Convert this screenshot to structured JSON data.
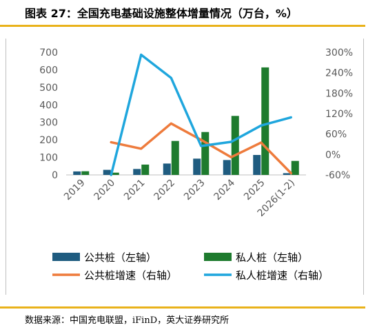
{
  "header": {
    "title": "图表 27：全国充电基础设施整体增量情况（万台，%）"
  },
  "footer": {
    "source": "数据来源：中国充电联盟，iFinD，英大证券研究所"
  },
  "colors": {
    "public_bar": "#1f5c80",
    "private_bar": "#1e7b2e",
    "public_growth": "#ee7b3c",
    "private_growth": "#1fa6dd",
    "rule": "#e9b21a"
  },
  "chart_data": {
    "type": "bar",
    "title": "全国充电基础设施整体增量情况（万台，%）",
    "categories": [
      "2019",
      "2020",
      "2021",
      "2022",
      "2023",
      "2024",
      "2025",
      "2026(1-2)"
    ],
    "y_left": {
      "ylim": [
        0,
        700
      ],
      "ticks": [
        "0",
        "100",
        "200",
        "300",
        "400",
        "500",
        "600",
        "700"
      ]
    },
    "y_right": {
      "ylim": [
        -60,
        300
      ],
      "ticks": [
        "-60%",
        "0%",
        "60%",
        "120%",
        "180%",
        "240%",
        "300%"
      ]
    },
    "series": [
      {
        "name": "公共桩（左轴）",
        "type": "bar",
        "axis": "left",
        "color": "#1f5c80",
        "values": [
          20,
          29,
          34,
          65,
          93,
          85,
          114,
          10
        ]
      },
      {
        "name": "私人桩（左轴）",
        "type": "bar",
        "axis": "left",
        "color": "#1e7b2e",
        "values": [
          21,
          13,
          59,
          194,
          245,
          337,
          614,
          80
        ]
      },
      {
        "name": "公共桩增速（右轴）",
        "type": "line",
        "axis": "right",
        "color": "#ee7b3c",
        "values": [
          null,
          36,
          17,
          91,
          43,
          -8,
          35,
          -55
        ]
      },
      {
        "name": "私人桩增速（右轴）",
        "type": "line",
        "axis": "right",
        "color": "#1fa6dd",
        "values": [
          null,
          -60,
          293,
          225,
          25,
          37,
          85,
          109
        ]
      }
    ],
    "legend_position": "bottom",
    "grid": false
  }
}
